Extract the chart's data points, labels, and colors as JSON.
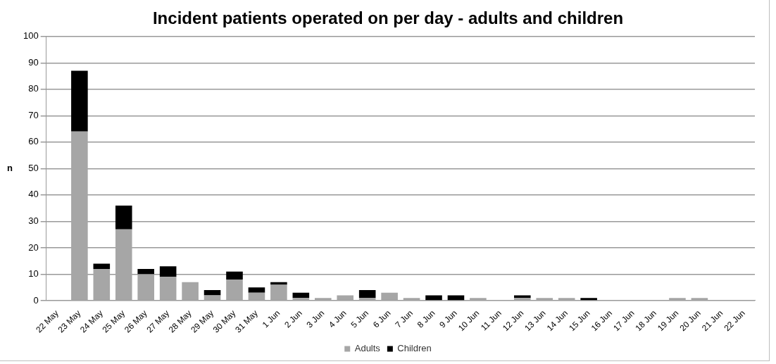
{
  "chart_data": {
    "type": "bar",
    "title": "Incident patients operated on per day - adults and children",
    "ylabel": "n",
    "categories": [
      "22 May",
      "23 May",
      "24 May",
      "25 May",
      "26 May",
      "27 May",
      "28 May",
      "29 May",
      "30 May",
      "31 May",
      "1 Jun",
      "2 Jun",
      "3 Jun",
      "4 Jun",
      "5 Jun",
      "6 Jun",
      "7 Jun",
      "8 Jun",
      "9 Jun",
      "10 Jun",
      "11 Jun",
      "12 Jun",
      "13 Jun",
      "14 Jun",
      "15 Jun",
      "16 Jun",
      "17 Jun",
      "18 Jun",
      "19 Jun",
      "20 Jun",
      "21 Jun",
      "22 Jun"
    ],
    "series": [
      {
        "name": "Adults",
        "color": "#a6a6a6",
        "values": [
          0,
          64,
          12,
          27,
          10,
          9,
          7,
          2,
          8,
          3,
          6,
          1,
          1,
          2,
          1,
          3,
          1,
          0,
          0,
          1,
          0,
          1,
          1,
          1,
          0,
          0,
          0,
          0,
          1,
          1,
          0,
          0
        ]
      },
      {
        "name": "Children",
        "color": "#000000",
        "values": [
          0,
          23,
          2,
          9,
          2,
          4,
          0,
          2,
          3,
          2,
          1,
          2,
          0,
          0,
          3,
          0,
          0,
          2,
          2,
          0,
          0,
          1,
          0,
          0,
          1,
          0,
          0,
          0,
          0,
          0,
          0,
          0
        ]
      }
    ],
    "stacked": true,
    "ylim": [
      0,
      100
    ],
    "yticks": [
      0,
      10,
      20,
      30,
      40,
      50,
      60,
      70,
      80,
      90,
      100
    ],
    "grid": "y",
    "legend": "bottom"
  }
}
